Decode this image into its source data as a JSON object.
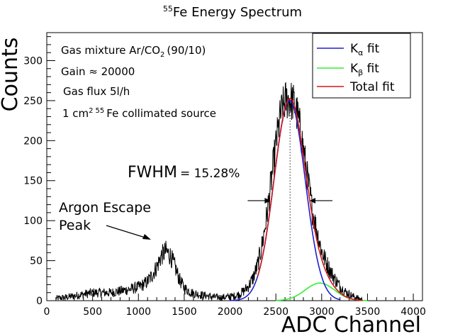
{
  "chart_data": {
    "type": "line",
    "title_sup": "55",
    "title": "Fe Energy Spectrum",
    "xlabel": "ADC Channel",
    "ylabel": "Counts",
    "xlim": [
      0,
      4100
    ],
    "ylim": [
      0,
      335
    ],
    "xticks": [
      0,
      500,
      1000,
      1500,
      2000,
      2500,
      3000,
      3500,
      4000
    ],
    "xtick_labels": [
      "0",
      "500",
      "1000",
      "1500",
      "2000",
      "2500",
      "3000",
      "3500",
      "4000"
    ],
    "yticks": [
      0,
      50,
      100,
      150,
      200,
      250,
      300
    ],
    "ytick_labels": [
      "0",
      "50",
      "100",
      "150",
      "200",
      "250",
      "300"
    ],
    "info_lines": {
      "gas_prefix": "Gas mixture Ar/CO",
      "gas_sub": "2",
      "gas_suffix": "(90/10)",
      "gain": "Gain ≈ 20000",
      "flux": "Gas flux 5l/h",
      "source_prefix": "1 cm",
      "source_sup1": "2",
      "source_sup2": "55",
      "source_suffix": "Fe collimated source"
    },
    "fwhm": {
      "label": "FWHM",
      "value": "= 15.28%",
      "left_channel": 2440,
      "right_channel": 2870,
      "counts": 125
    },
    "escape_label": [
      "Argon Escape",
      "Peak"
    ],
    "peak_marker_channel": 2655,
    "legend": [
      {
        "main": "K",
        "sub": "α",
        "rest": " fit",
        "color": "#1f1fd0"
      },
      {
        "main": "K",
        "sub": "β",
        "rest": " fit",
        "color": "#33ee33"
      },
      {
        "main": "Total fit",
        "sub": "",
        "rest": "",
        "color": "#d01818"
      }
    ],
    "series": [
      {
        "name": "Data",
        "color": "#000000",
        "x": [
          100,
          200,
          300,
          400,
          500,
          600,
          700,
          800,
          900,
          1000,
          1050,
          1100,
          1150,
          1200,
          1250,
          1300,
          1350,
          1400,
          1450,
          1500,
          1550,
          1600,
          1650,
          1700,
          1800,
          1900,
          2000,
          2050,
          2100,
          2150,
          2200,
          2250,
          2300,
          2350,
          2400,
          2450,
          2500,
          2550,
          2600,
          2650,
          2700,
          2750,
          2800,
          2850,
          2900,
          2950,
          3000,
          3050,
          3100,
          3150,
          3200,
          3250,
          3300,
          3350,
          3400,
          3450
        ],
        "y": [
          3,
          4,
          6,
          8,
          10,
          10,
          10,
          12,
          14,
          17,
          20,
          24,
          32,
          42,
          56,
          62,
          56,
          42,
          26,
          16,
          12,
          9,
          8,
          7,
          5,
          4,
          5,
          6,
          8,
          12,
          18,
          28,
          44,
          70,
          105,
          150,
          195,
          232,
          250,
          252,
          246,
          225,
          190,
          150,
          112,
          86,
          62,
          48,
          36,
          26,
          18,
          12,
          8,
          5,
          3,
          1
        ]
      },
      {
        "name": "Kα fit",
        "color": "#1f1fd0",
        "model": {
          "amp": 250,
          "mean": 2650,
          "sigma": 170
        },
        "range": [
          2000,
          3200
        ]
      },
      {
        "name": "Kβ fit",
        "color": "#33ee33",
        "model": {
          "amp": 22,
          "mean": 2980,
          "sigma": 160
        },
        "range": [
          2500,
          3500
        ]
      },
      {
        "name": "Total fit",
        "color": "#d01818",
        "range": [
          2300,
          3450
        ]
      }
    ]
  }
}
